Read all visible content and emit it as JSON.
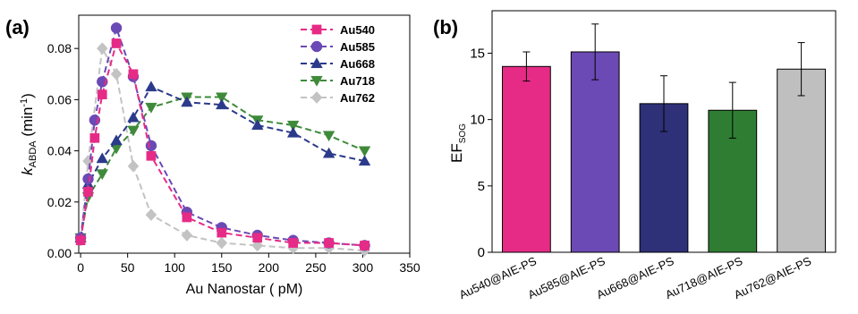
{
  "panels": {
    "a_label": "(a)",
    "b_label": "(b)"
  },
  "chart_data": [
    {
      "type": "line",
      "panel": "(a)",
      "xlabel": "Au Nanostar ( pM)",
      "ylabel_main": "k",
      "ylabel_sub": "ABDA",
      "ylabel_unit": " (min",
      "ylabel_sup": "-1",
      "ylabel_end": ")",
      "xlim": [
        -2,
        350
      ],
      "ylim": [
        0,
        0.093
      ],
      "xticks": [
        0,
        50,
        100,
        150,
        200,
        250,
        300,
        350
      ],
      "yticks": [
        0.0,
        0.02,
        0.04,
        0.06,
        0.08
      ],
      "legend_position": "top-right",
      "grid": false,
      "series": [
        {
          "name": "Au540",
          "color": "#e62b86",
          "marker": "square",
          "x": [
            0,
            8,
            15,
            23,
            38,
            56,
            75,
            113,
            150,
            188,
            226,
            264,
            302
          ],
          "y": [
            0.005,
            0.024,
            0.045,
            0.062,
            0.082,
            0.07,
            0.038,
            0.014,
            0.008,
            0.006,
            0.004,
            0.004,
            0.003
          ]
        },
        {
          "name": "Au585",
          "color": "#6b4ab5",
          "marker": "circle",
          "x": [
            0,
            8,
            15,
            23,
            38,
            56,
            75,
            113,
            150,
            188,
            226,
            264,
            302
          ],
          "y": [
            0.006,
            0.029,
            0.052,
            0.067,
            0.088,
            0.069,
            0.042,
            0.016,
            0.01,
            0.007,
            0.005,
            0.004,
            0.003
          ]
        },
        {
          "name": "Au668",
          "color": "#2b3a8a",
          "marker": "triangle-up",
          "x": [
            0,
            8,
            23,
            38,
            56,
            75,
            113,
            150,
            188,
            226,
            264,
            302
          ],
          "y": [
            0.006,
            0.027,
            0.037,
            0.044,
            0.053,
            0.065,
            0.059,
            0.058,
            0.05,
            0.047,
            0.039,
            0.036
          ]
        },
        {
          "name": "Au718",
          "color": "#3f8a3a",
          "marker": "triangle-down",
          "x": [
            0,
            8,
            23,
            38,
            56,
            75,
            113,
            150,
            188,
            226,
            264,
            302
          ],
          "y": [
            0.006,
            0.022,
            0.031,
            0.041,
            0.048,
            0.057,
            0.061,
            0.061,
            0.052,
            0.05,
            0.046,
            0.04
          ]
        },
        {
          "name": "Au762",
          "color": "#c3c3c3",
          "marker": "diamond",
          "x": [
            0,
            8,
            23,
            38,
            56,
            75,
            113,
            150,
            188,
            226,
            264,
            302
          ],
          "y": [
            0.005,
            0.036,
            0.08,
            0.07,
            0.034,
            0.015,
            0.007,
            0.004,
            0.003,
            0.002,
            0.002,
            0.001
          ]
        }
      ]
    },
    {
      "type": "bar",
      "panel": "(b)",
      "ylabel_main": "EF",
      "ylabel_sub": "SOG",
      "xlabel": "",
      "ylim": [
        0,
        18.2
      ],
      "yticks": [
        0,
        5,
        10,
        15
      ],
      "grid": false,
      "categories": [
        "Au540@AIE-PS",
        "Au585@AIE-PS",
        "Au668@AIE-PS",
        "Au718@AIE-PS",
        "Au762@AIE-PS"
      ],
      "values": [
        14.0,
        15.1,
        11.2,
        10.7,
        13.8
      ],
      "errors": [
        1.1,
        2.1,
        2.1,
        2.1,
        2.0
      ],
      "colors": [
        "#e62b86",
        "#6b4ab5",
        "#2e3078",
        "#2f7d32",
        "#bfbfbf"
      ]
    }
  ]
}
